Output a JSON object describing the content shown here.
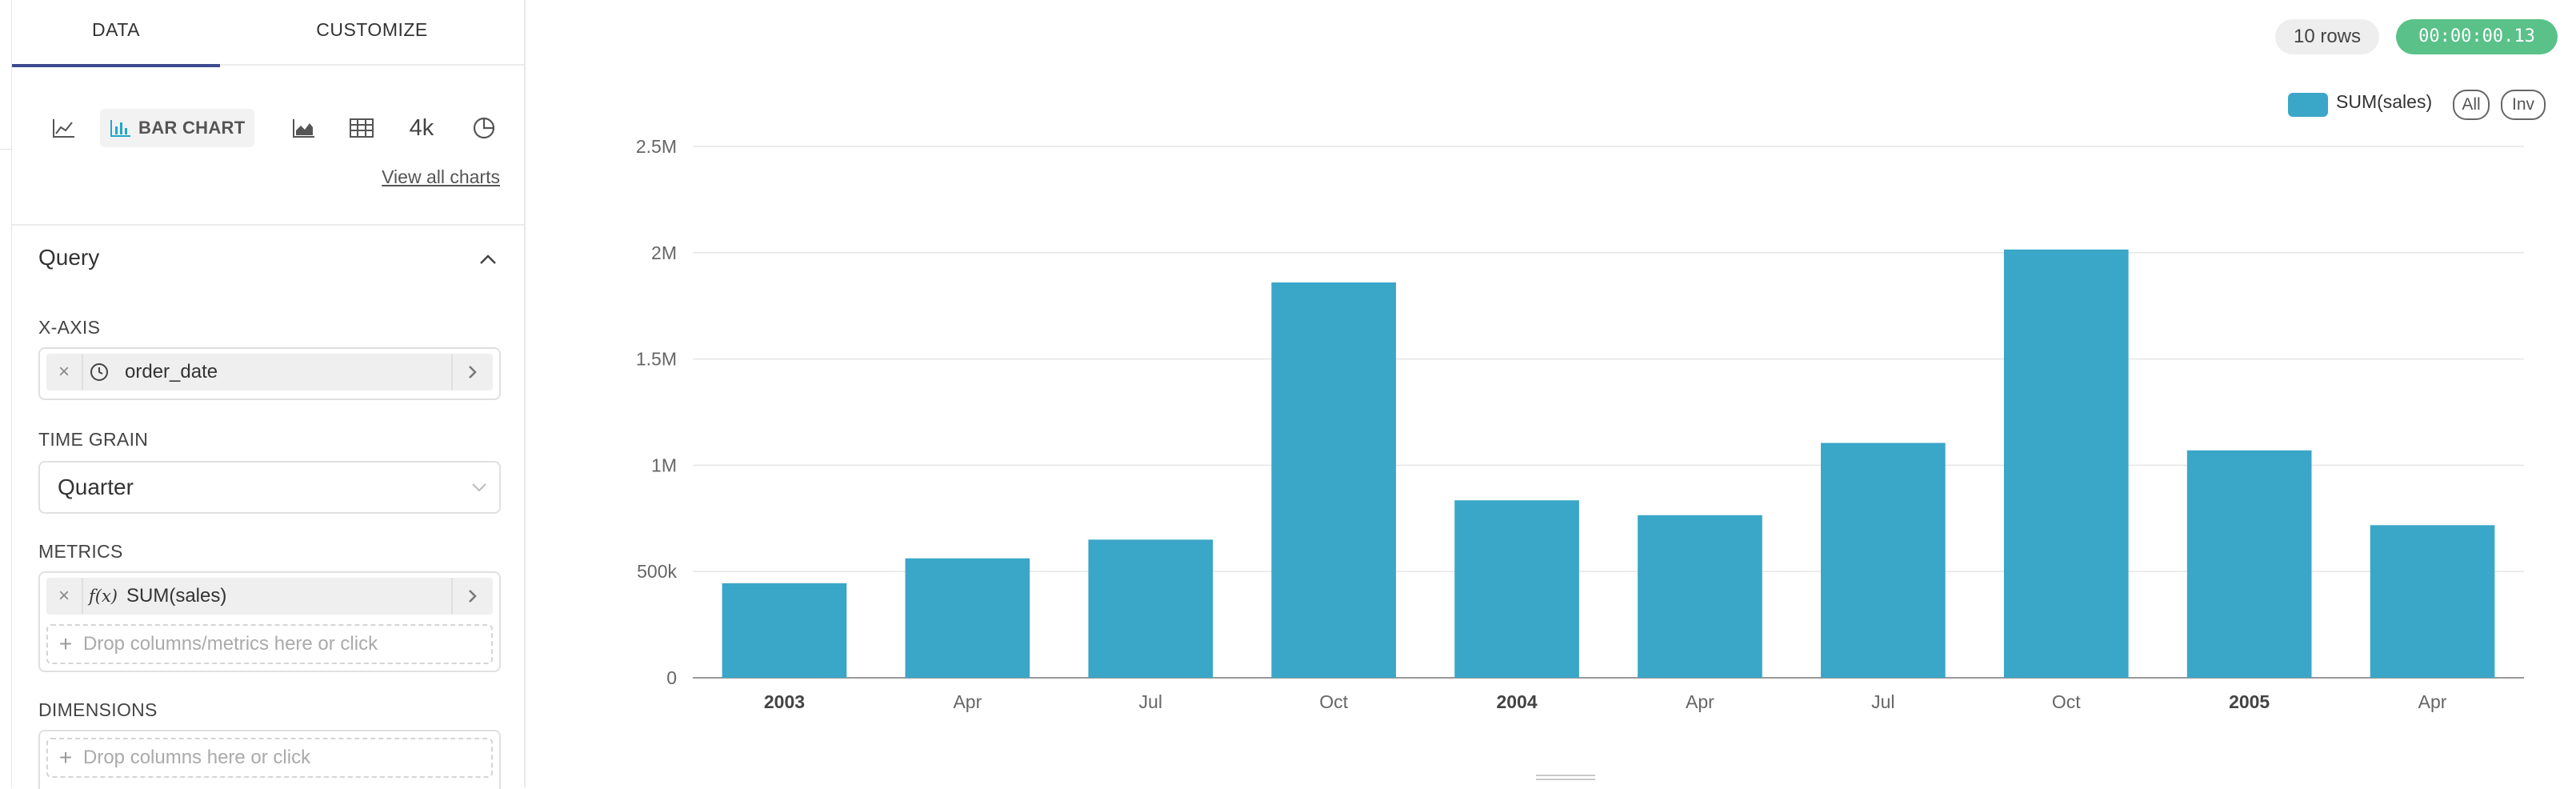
{
  "tabs": [
    {
      "label": "DATA",
      "active": true
    },
    {
      "label": "CUSTOMIZE",
      "active": false
    }
  ],
  "chart_types": {
    "active_label": "BAR CHART",
    "numeric_label": "4k",
    "view_all": "View all charts",
    "icons": [
      "line-chart-icon",
      "bar-chart-icon",
      "area-chart-icon",
      "table-icon",
      "big-number-icon",
      "pie-chart-icon"
    ]
  },
  "query": {
    "title": "Query",
    "x_axis": {
      "label": "X-AXIS",
      "value": "order_date",
      "remove": "×"
    },
    "time_grain": {
      "label": "TIME GRAIN",
      "value": "Quarter"
    },
    "metrics": {
      "label": "METRICS",
      "value": "SUM(sales)",
      "fx": "f(x)",
      "remove": "×",
      "drop_placeholder": "Drop columns/metrics here or click"
    },
    "dimensions": {
      "label": "DIMENSIONS",
      "drop_placeholder": "Drop columns here or click"
    }
  },
  "status": {
    "rows": "10 rows",
    "time": "00:00:00.13"
  },
  "legend": {
    "series_label": "SUM(sales)",
    "all": "All",
    "inv": "Inv"
  },
  "colors": {
    "bar": "#3aa6c8",
    "accent": "#3d4a8f",
    "success": "#5ac189"
  },
  "chart_data": {
    "type": "bar",
    "categories": [
      "2003",
      "Apr",
      "Jul",
      "Oct",
      "2004",
      "Apr",
      "Jul",
      "Oct",
      "2005",
      "Apr"
    ],
    "bold_categories": [
      "2003",
      "2004",
      "2005"
    ],
    "series": [
      {
        "name": "SUM(sales)",
        "values": [
          445000,
          562000,
          650000,
          1860000,
          835000,
          765000,
          1105000,
          2015000,
          1070000,
          718000
        ]
      }
    ],
    "y_ticks": [
      0,
      500000,
      1000000,
      1500000,
      2000000,
      2500000
    ],
    "y_tick_labels": [
      "0",
      "500k",
      "1M",
      "1.5M",
      "2M",
      "2.5M"
    ],
    "ylim": [
      0,
      2500000
    ],
    "grid": true,
    "legend_position": "top-right"
  }
}
